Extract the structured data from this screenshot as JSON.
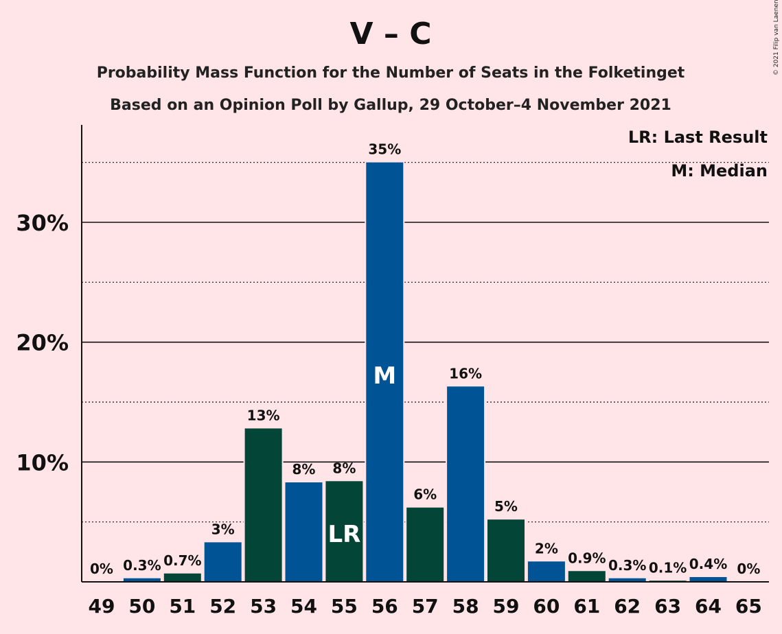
{
  "title": "V – C",
  "subtitle1": "Probability Mass Function for the Number of Seats in the Folketinget",
  "subtitle2": "Based on an Opinion Poll by Gallup, 29 October–4 November 2021",
  "copyright": "© 2021 Filip van Laenen",
  "legend": {
    "last_result": "LR: Last Result",
    "median": "M: Median"
  },
  "colors": {
    "background": "#FFE4E8",
    "blue": "#005496",
    "green": "#034536",
    "text": "#111111"
  },
  "chart_data": {
    "type": "bar",
    "categories": [
      "49",
      "50",
      "51",
      "52",
      "53",
      "54",
      "55",
      "56",
      "57",
      "58",
      "59",
      "60",
      "61",
      "62",
      "63",
      "64",
      "65"
    ],
    "values": [
      0,
      0.3,
      0.7,
      3.3,
      12.8,
      8.3,
      8.4,
      35.0,
      6.2,
      16.3,
      5.2,
      1.7,
      0.9,
      0.3,
      0.1,
      0.4,
      0
    ],
    "data_labels": [
      "0%",
      "0.3%",
      "0.7%",
      "3%",
      "13%",
      "8%",
      "8%",
      "35%",
      "6%",
      "16%",
      "5%",
      "2%",
      "0.9%",
      "0.3%",
      "0.1%",
      "0.4%",
      "0%"
    ],
    "bar_colors": [
      "blue",
      "blue",
      "green",
      "blue",
      "green",
      "blue",
      "green",
      "blue",
      "green",
      "blue",
      "green",
      "blue",
      "green",
      "blue",
      "green",
      "blue",
      "green"
    ],
    "yticks": [
      10,
      20,
      30
    ],
    "ytick_labels": [
      "10%",
      "20%",
      "30%"
    ],
    "ylim": [
      0,
      38
    ],
    "grid_solid": [
      10,
      20,
      30
    ],
    "grid_dotted": [
      5,
      15,
      25,
      35
    ],
    "markers": [
      {
        "category": "55",
        "label": "LR"
      },
      {
        "category": "56",
        "label": "M"
      }
    ]
  }
}
